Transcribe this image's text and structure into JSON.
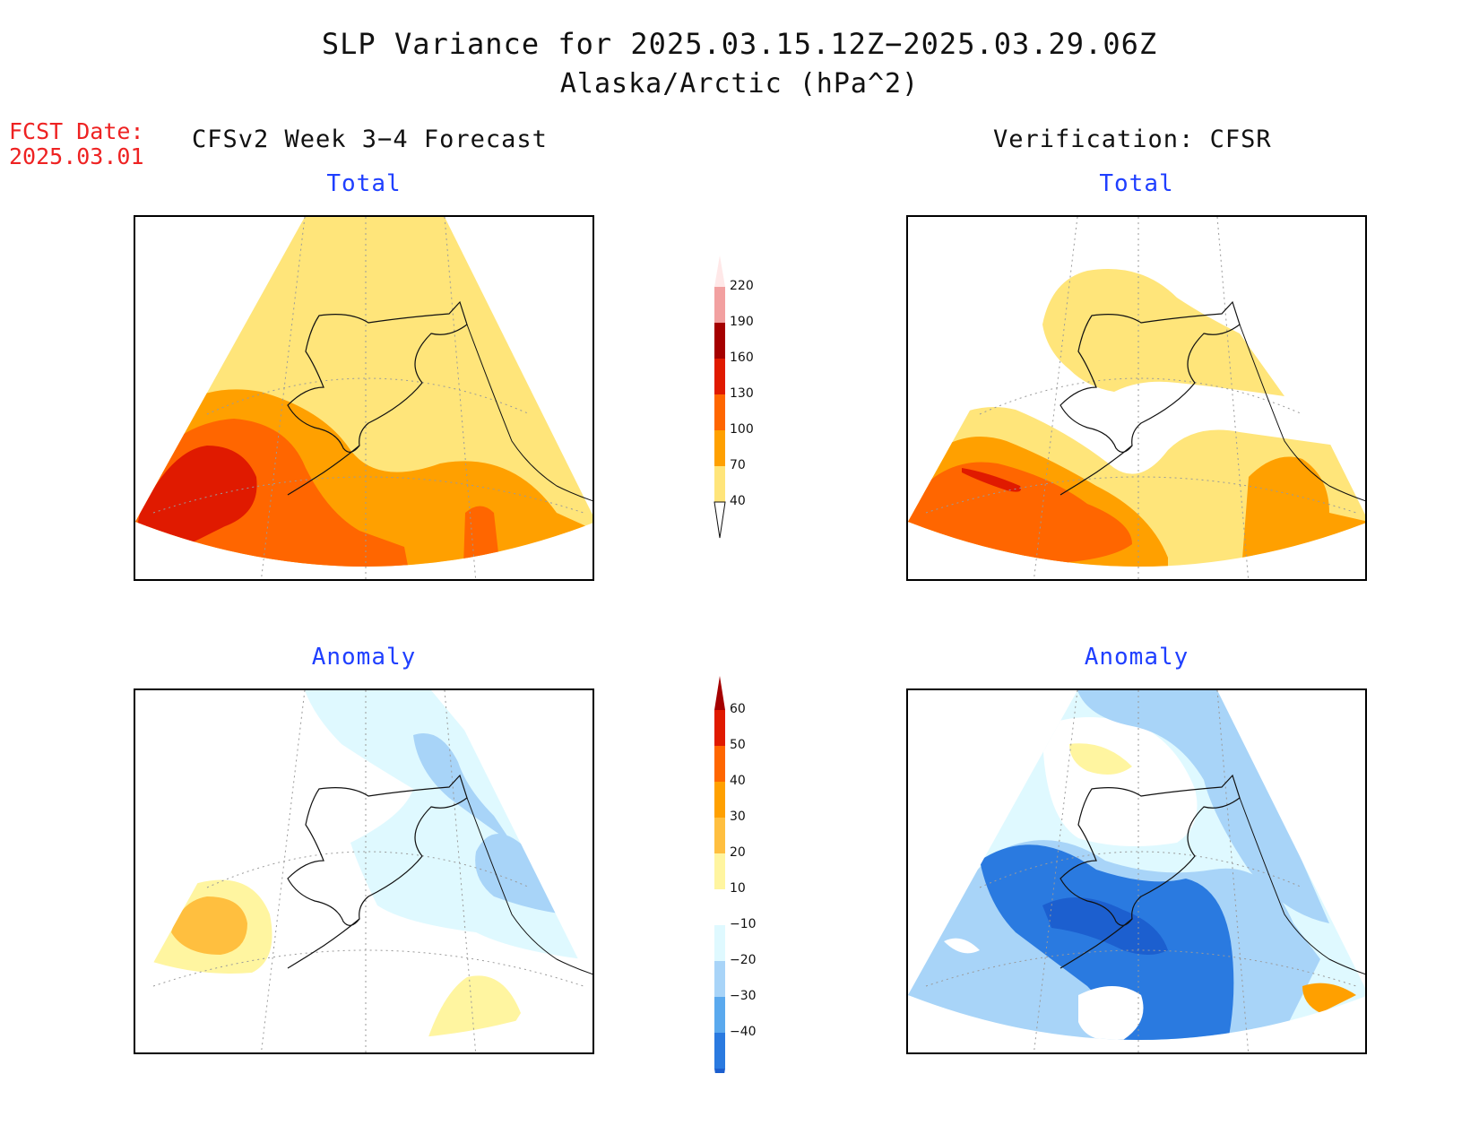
{
  "header": {
    "title": "SLP Variance for 2025.03.15.12Z−2025.03.29.06Z",
    "subtitle": "Alaska/Arctic (hPa^2)"
  },
  "forecast_date": {
    "label": "FCST Date:",
    "value": "2025.03.01"
  },
  "columns": {
    "left": "CFSv2 Week 3−4 Forecast",
    "right": "Verification: CFSR"
  },
  "panels": {
    "forecast_total": {
      "title": "Total"
    },
    "verification_total": {
      "title": "Total"
    },
    "forecast_anomaly": {
      "title": "Anomaly"
    },
    "verification_anomaly": {
      "title": "Anomaly"
    }
  },
  "colorbars": {
    "total": {
      "levels": [
        "40",
        "70",
        "100",
        "130",
        "160",
        "190",
        "220"
      ],
      "colors": [
        "#ffe57a",
        "#ffa000",
        "#ff6600",
        "#e01a00",
        "#a50000",
        "#f2a0a0",
        "#ffe8e8"
      ]
    },
    "anomaly": {
      "levels": [
        "60",
        "50",
        "40",
        "30",
        "20",
        "10",
        "−10",
        "−20",
        "−30",
        "−40"
      ],
      "colors": [
        "#a50000",
        "#e01a00",
        "#ff6600",
        "#ffa000",
        "#ffbf3f",
        "#fff5a0",
        "#ffffff",
        "#dff9ff",
        "#a8d4f8",
        "#5aa9ee",
        "#2a7ae0",
        "#1c5fcf"
      ]
    }
  },
  "palette": {
    "coast": "#111111",
    "grid": "#9a9a9a"
  }
}
